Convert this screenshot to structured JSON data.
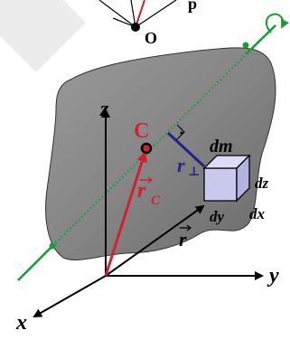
{
  "labels": {
    "origin_top": "O",
    "center_of_mass": "C",
    "axis_z": "z",
    "axis_y": "y",
    "axis_x": "x",
    "r_c": "r",
    "r_c_subscript": "C",
    "r_perp": "r",
    "r_perp_subscript": "⊥",
    "r_vector": "r",
    "dm": "dm",
    "dz": "dz",
    "dy": "dy",
    "dx": "dx",
    "top_fragment": "p"
  },
  "colors": {
    "body_fill": "#8a8a8a",
    "body_fill_dark": "#6e6e6e",
    "rotation_axis": "#1a9b3a",
    "r_c_vector": "#d3202c",
    "r_perp_segment": "#22228c",
    "cube_fill": "#c9c9ee",
    "axes": "#000000",
    "watermark": "#e8e8e8"
  },
  "icons": {
    "rotation_arrow": "curved-arrow-icon",
    "right_angle": "right-angle-mark-icon"
  }
}
